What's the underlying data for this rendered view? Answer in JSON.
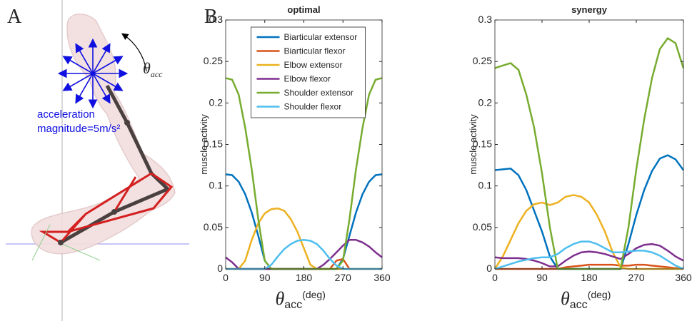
{
  "panel_a": {
    "label": "A",
    "annotation_lines": [
      "acceleration",
      "magnitude=5m/s²"
    ],
    "angle_label": {
      "symbol": "θ",
      "subscript": "acc"
    }
  },
  "panel_b_label": "B",
  "chart_data": [
    {
      "type": "line",
      "title": "optimal",
      "ylabel": "muscle activity",
      "xlabel": {
        "symbol": "θ",
        "subscript": "acc",
        "unit": "(deg)"
      },
      "xlim": [
        0,
        360
      ],
      "xticks": [
        0,
        90,
        180,
        270,
        360
      ],
      "ylim": [
        0,
        0.3
      ],
      "yticks": [
        0,
        0.05,
        0.1,
        0.15,
        0.2,
        0.25,
        0.3
      ],
      "legend": "upper center",
      "x": [
        0,
        15,
        30,
        45,
        60,
        75,
        90,
        105,
        120,
        135,
        150,
        165,
        180,
        195,
        210,
        225,
        240,
        255,
        270,
        285,
        300,
        315,
        330,
        345,
        360
      ],
      "series": [
        {
          "name": "Biarticular extensor",
          "color": "#0072bd",
          "values": [
            0.114,
            0.113,
            0.105,
            0.09,
            0.068,
            0.04,
            0.01,
            0,
            0,
            0,
            0,
            0,
            0,
            0,
            0,
            0,
            0,
            0,
            0.012,
            0.04,
            0.068,
            0.09,
            0.105,
            0.113,
            0.114
          ]
        },
        {
          "name": "Biarticular flexor",
          "color": "#d95319",
          "values": [
            0,
            0,
            0,
            0,
            0,
            0,
            0,
            0,
            0,
            0,
            0,
            0,
            0,
            0,
            0,
            0,
            0,
            0.01,
            0.012,
            0,
            0,
            0,
            0,
            0,
            0
          ]
        },
        {
          "name": "Elbow extensor",
          "color": "#edb120",
          "values": [
            0,
            0,
            0,
            0.01,
            0.035,
            0.055,
            0.067,
            0.072,
            0.073,
            0.07,
            0.06,
            0.045,
            0.025,
            0.005,
            0,
            0,
            0,
            0,
            0,
            0,
            0,
            0,
            0,
            0,
            0
          ]
        },
        {
          "name": "Elbow flexor",
          "color": "#7e2f8e",
          "values": [
            0.014,
            0.008,
            0,
            0,
            0,
            0,
            0,
            0,
            0,
            0,
            0,
            0,
            0,
            0,
            0,
            0.005,
            0.012,
            0.02,
            0.028,
            0.035,
            0.035,
            0.032,
            0.027,
            0.02,
            0.014
          ]
        },
        {
          "name": "Shoulder extensor",
          "color": "#77ac30",
          "values": [
            0.23,
            0.228,
            0.21,
            0.17,
            0.12,
            0.06,
            0.01,
            0,
            0,
            0,
            0,
            0,
            0,
            0,
            0,
            0,
            0,
            0,
            0.01,
            0.06,
            0.12,
            0.17,
            0.21,
            0.228,
            0.23
          ]
        },
        {
          "name": "Shoulder flexor",
          "color": "#4dbeee",
          "values": [
            0,
            0,
            0,
            0,
            0,
            0,
            0,
            0.005,
            0.015,
            0.024,
            0.03,
            0.034,
            0.035,
            0.034,
            0.03,
            0.022,
            0.012,
            0.004,
            0,
            0,
            0,
            0,
            0,
            0,
            0
          ]
        }
      ]
    },
    {
      "type": "line",
      "title": "synergy",
      "ylabel": "muscle activity",
      "xlabel": {
        "symbol": "θ",
        "subscript": "acc",
        "unit": "(deg)"
      },
      "xlim": [
        0,
        360
      ],
      "xticks": [
        0,
        90,
        180,
        270,
        360
      ],
      "ylim": [
        0,
        0.3
      ],
      "yticks": [
        0,
        0.05,
        0.1,
        0.15,
        0.2,
        0.25,
        0.3
      ],
      "x": [
        0,
        15,
        30,
        45,
        60,
        75,
        90,
        105,
        120,
        135,
        150,
        165,
        180,
        195,
        210,
        225,
        240,
        255,
        270,
        285,
        300,
        315,
        330,
        345,
        360
      ],
      "series": [
        {
          "color": "#0072bd",
          "values": [
            0.119,
            0.12,
            0.121,
            0.113,
            0.095,
            0.07,
            0.045,
            0.015,
            0,
            0,
            0,
            0,
            0,
            0,
            0,
            0,
            0,
            0.03,
            0.065,
            0.095,
            0.118,
            0.133,
            0.137,
            0.132,
            0.119
          ]
        },
        {
          "color": "#d95319",
          "values": [
            0,
            0,
            0,
            0,
            0,
            0,
            0,
            0,
            0,
            0.002,
            0.003,
            0.004,
            0.005,
            0.005,
            0.005,
            0.005,
            0.004,
            0.004,
            0.005,
            0.005,
            0.004,
            0.003,
            0.002,
            0.001,
            0
          ]
        },
        {
          "color": "#edb120",
          "values": [
            0,
            0.015,
            0.035,
            0.055,
            0.07,
            0.078,
            0.08,
            0.077,
            0.08,
            0.087,
            0.089,
            0.087,
            0.08,
            0.065,
            0.045,
            0.02,
            0.002,
            0,
            0,
            0,
            0,
            0,
            0,
            0,
            0
          ]
        },
        {
          "color": "#7e2f8e",
          "values": [
            0.014,
            0.013,
            0.013,
            0.013,
            0.012,
            0.01,
            0.007,
            0.003,
            0.003,
            0.01,
            0.016,
            0.02,
            0.021,
            0.02,
            0.018,
            0.015,
            0.012,
            0.018,
            0.025,
            0.029,
            0.03,
            0.028,
            0.022,
            0.015,
            0.01
          ]
        },
        {
          "color": "#77ac30",
          "values": [
            0.242,
            0.245,
            0.248,
            0.24,
            0.21,
            0.17,
            0.115,
            0.05,
            0,
            0,
            0,
            0,
            0,
            0,
            0,
            0,
            0,
            0.05,
            0.12,
            0.18,
            0.23,
            0.265,
            0.278,
            0.272,
            0.242
          ]
        },
        {
          "color": "#4dbeee",
          "values": [
            0,
            0.003,
            0.006,
            0.009,
            0.011,
            0.013,
            0.014,
            0.014,
            0.018,
            0.025,
            0.03,
            0.033,
            0.033,
            0.03,
            0.025,
            0.02,
            0.02,
            0.021,
            0.022,
            0.022,
            0.02,
            0.016,
            0.01,
            0.004,
            0
          ]
        }
      ]
    }
  ]
}
